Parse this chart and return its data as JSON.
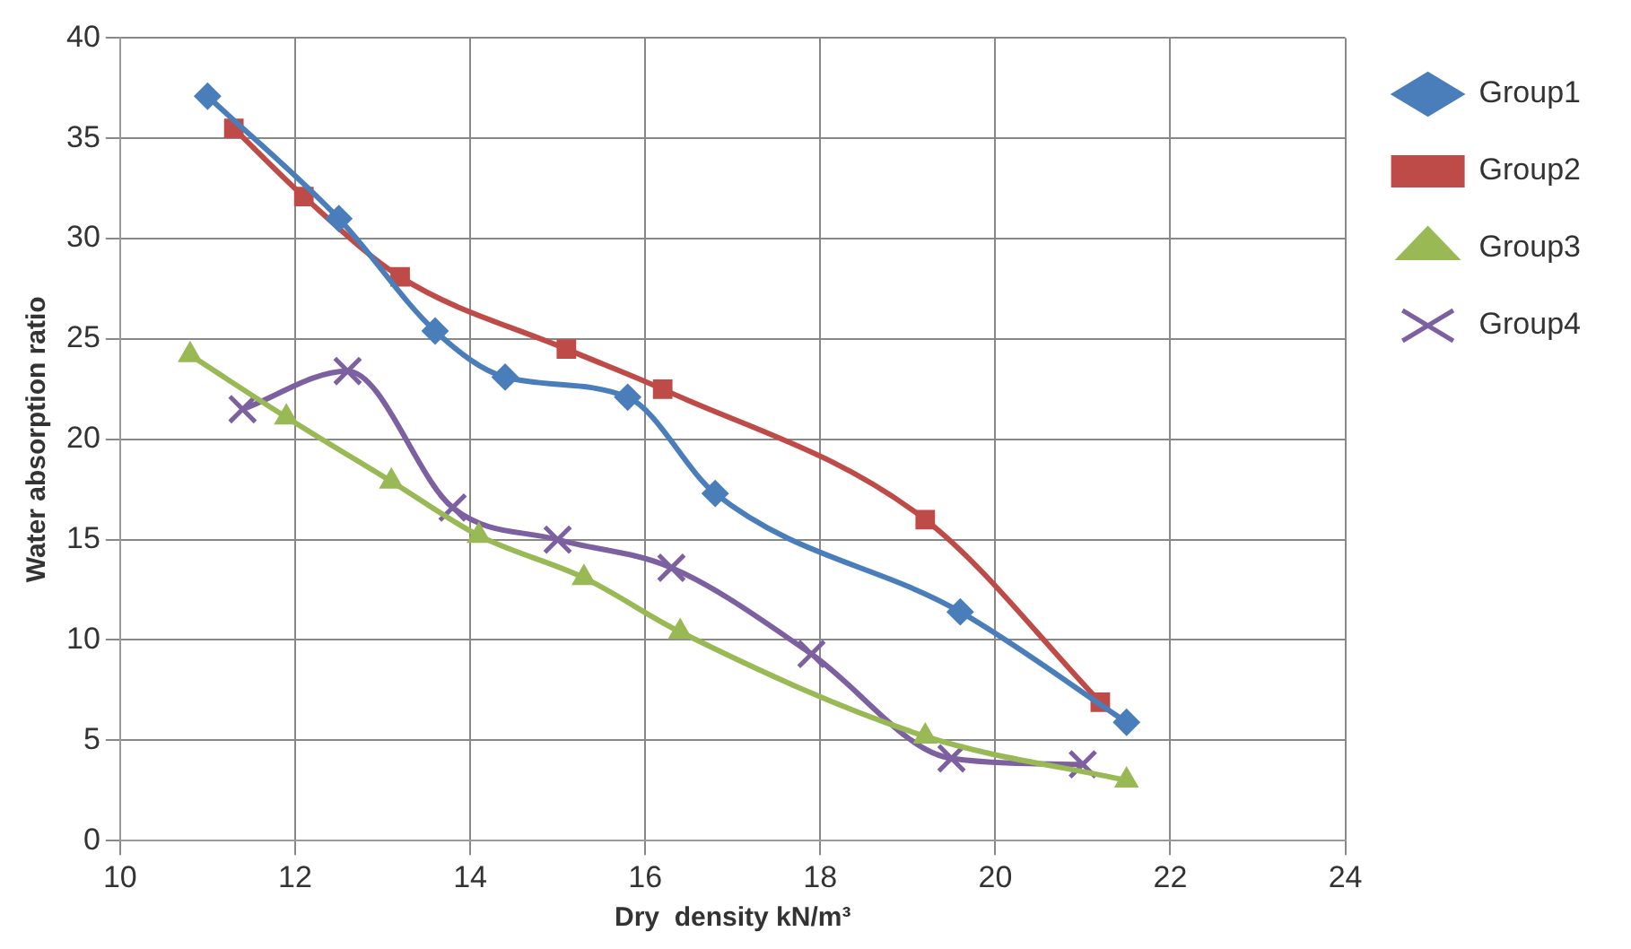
{
  "chart_data": {
    "type": "line",
    "xlabel": "Dry  density kN/m³",
    "ylabel": "Water absorption ratio",
    "xlim": [
      10,
      24
    ],
    "xticks": [
      10,
      12,
      14,
      16,
      18,
      20,
      22,
      24
    ],
    "ylim": [
      0,
      40
    ],
    "yticks": [
      0,
      5,
      10,
      15,
      20,
      25,
      30,
      35,
      40
    ],
    "grid": true,
    "legend": "right",
    "series": [
      {
        "name": "Group1",
        "color": "#4a7ebb",
        "marker": "diamond",
        "x": [
          11.0,
          12.5,
          13.6,
          14.4,
          15.8,
          16.8,
          19.6,
          21.5
        ],
        "values": [
          37.1,
          31,
          25.4,
          23.1,
          22.1,
          17.3,
          11.4,
          5.9
        ]
      },
      {
        "name": "Group2",
        "color": "#be4b48",
        "marker": "square",
        "x": [
          11.3,
          12.1,
          13.2,
          15.1,
          16.2,
          19.2,
          21.2
        ],
        "values": [
          35.5,
          32.1,
          28.1,
          24.5,
          22.5,
          16.0,
          6.9
        ]
      },
      {
        "name": "Group3",
        "color": "#98b954",
        "marker": "triangle",
        "x": [
          10.8,
          11.9,
          13.1,
          14.1,
          15.3,
          16.4,
          19.2,
          21.5
        ],
        "values": [
          24.2,
          21.1,
          17.9,
          15.2,
          13.1,
          10.4,
          5.2,
          3.0
        ]
      },
      {
        "name": "Group4",
        "color": "#7d60a0",
        "marker": "cross",
        "x": [
          11.4,
          12.6,
          13.8,
          15.0,
          16.3,
          17.9,
          19.5,
          21.0
        ],
        "values": [
          21.5,
          23.4,
          16.6,
          15.0,
          13.6,
          9.3,
          4.1,
          3.8
        ]
      }
    ]
  }
}
